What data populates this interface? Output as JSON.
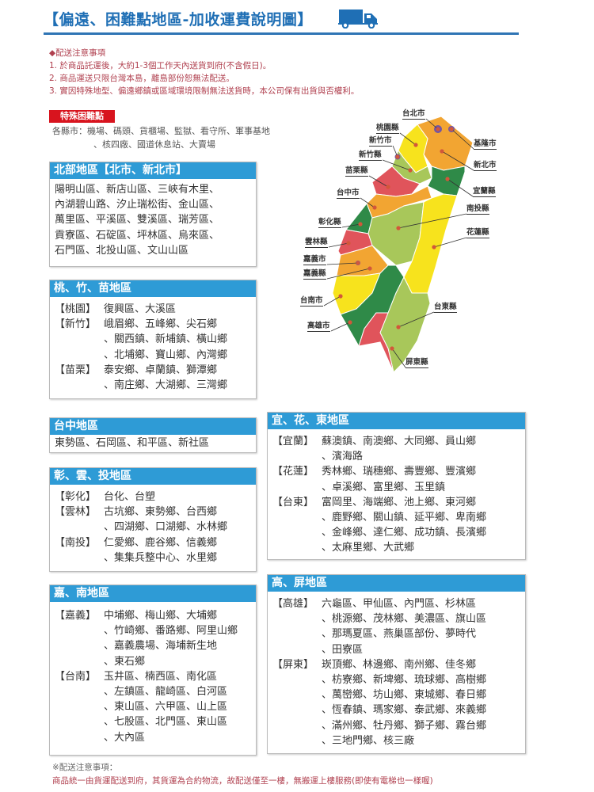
{
  "header": {
    "title": "【偏遠、困難點地區-加收運費說明圖】",
    "icon": "truck-icon",
    "accent": "#1f6fb5"
  },
  "notice": {
    "heading": "◆配送注意事項",
    "items": [
      "1. 於商品託運後，大約1-3個工作天內送貨到府(不含假日)。",
      "2. 商品運送只限台灣本島，離島部份恕無法配送。",
      "3. 實因特殊地型、偏遠鄉鎮或區域環境限制無法送貨時，本公司保有出貨與否權利。"
    ]
  },
  "special": {
    "badge": "特殊困難點",
    "line1": "各縣市：機場、碼頭、貨櫃場、監獄、看守所、軍事基地",
    "line2": "、核四廠、國道休息站、大賣場"
  },
  "regions": {
    "north": {
      "title": "北部地區【北市、新北市】",
      "text": "陽明山區、新店山區、三峽有木里、\n內湖碧山路、汐止瑞松街、金山區、\n萬里區、平溪區、雙溪區、瑞芳區、\n貢寮區、石碇區、坪林區、烏來區、\n石門區、北投山區、文山山區"
    },
    "tzm": {
      "title": "桃、竹、苗地區",
      "rows": [
        {
          "k": "【桃園】",
          "v": "復興區、大溪區"
        },
        {
          "k": "【新竹】",
          "v": "峨眉鄉、五峰鄉、尖石鄉\n、關西鎮、新埔鎮、橫山鄉\n、北埔鄉、寶山鄉、內灣鄉"
        },
        {
          "k": "【苗栗】",
          "v": "泰安鄉、卓蘭鎮、獅潭鄉\n、南庄鄉、大湖鄉、三灣鄉"
        }
      ]
    },
    "taichung": {
      "title": "台中地區",
      "text": "東勢區、石岡區、和平區、新社區"
    },
    "cyt": {
      "title": "彰、雲、投地區",
      "rows": [
        {
          "k": "【彰化】",
          "v": "台化、台塑"
        },
        {
          "k": "【雲林】",
          "v": "古坑鄉、東勢鄉、台西鄉\n、四湖鄉、口湖鄉、水林鄉"
        },
        {
          "k": "【南投】",
          "v": "仁愛鄉、鹿谷鄉、信義鄉\n、集集兵整中心、水里鄉"
        }
      ]
    },
    "cn": {
      "title": "嘉、南地區",
      "rows": [
        {
          "k": "【嘉義】",
          "v": "中埔鄉、梅山鄉、大埔鄉\n、竹崎鄉、番路鄉、阿里山鄉\n、嘉義農場、海埔新生地\n、東石鄉"
        },
        {
          "k": "【台南】",
          "v": "玉井區、楠西區、南化區\n、左鎮區、龍崎區、白河區\n、東山區、六甲區、山上區\n、七股區、北門區、東山區\n、大內區"
        }
      ]
    },
    "yhd": {
      "title": "宜、花、東地區",
      "rows": [
        {
          "k": "【宜蘭】",
          "v": "蘇澳鎮、南澳鄉、大同鄉、員山鄉\n、濱海路"
        },
        {
          "k": "【花蓮】",
          "v": "秀林鄉、瑞穗鄉、壽豐鄉、豐濱鄉\n、卓溪鄉、富里鄉、玉里鎮"
        },
        {
          "k": "【台東】",
          "v": "富岡里、海端鄉、池上鄉、東河鄉\n、鹿野鄉、關山鎮、延平鄉、卑南鄉\n、金峰鄉、達仁鄉、成功鎮、長濱鄉\n、太麻里鄉、大武鄉"
        }
      ]
    },
    "kp": {
      "title": "高、屏地區",
      "rows": [
        {
          "k": "【高雄】",
          "v": "六龜區、甲仙區、內門區、杉林區\n、桃源鄉、茂林鄉、美濃區、旗山區\n、那瑪夏區、燕巢區部份、夢時代\n、田寮區"
        },
        {
          "k": "【屏東】",
          "v": "崁頂鄉、林邊鄉、南州鄉、佳冬鄉\n、枋寮鄉、新埤鄉、琉球鄉、高樹鄉\n、萬巒鄉、坊山鄉、東城鄉、春日鄉\n、恆春鎮、瑪家鄉、泰武鄉、來義鄉\n、滿州鄉、牡丹鄉、獅子鄉、霧台鄉\n、三地門鄉、核三廠"
        }
      ]
    }
  },
  "map": {
    "labels": [
      "台北市",
      "桃園縣",
      "新竹市",
      "新竹縣",
      "苗栗縣",
      "台中市",
      "彰化縣",
      "雲林縣",
      "嘉義市",
      "嘉義縣",
      "台南市",
      "高雄市",
      "基隆市",
      "新北市",
      "宜蘭縣",
      "南投縣",
      "花蓮縣",
      "台東縣",
      "屏東縣"
    ],
    "colors": {
      "yellow": "#f7e31d",
      "orange": "#f2a532",
      "light_green": "#a8c75a",
      "dark_green": "#2f8a48",
      "red": "#e0545b",
      "purple": "#6f56a6"
    }
  },
  "footer": {
    "heading": "※配送注意事項：",
    "text": "商品統一由貨運配送到府，其貨運為合約物流，故配送僅至一樓，無搬運上樓服務(即使有電梯也一樣喔)"
  }
}
